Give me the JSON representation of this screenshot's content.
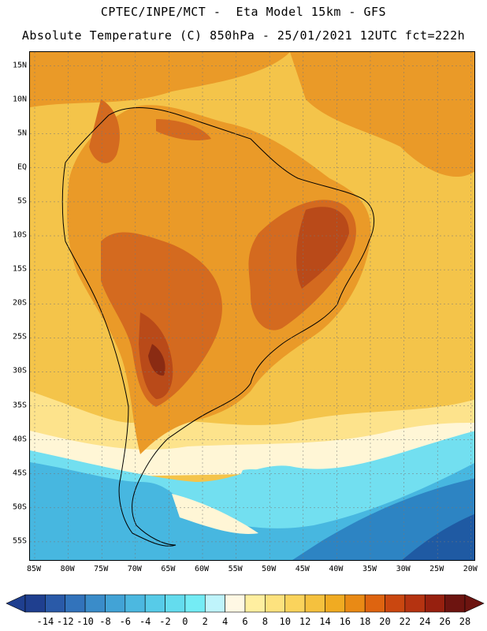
{
  "header": {
    "line1": "CPTEC/INPE/MCT -  Eta Model 15km - GFS",
    "line2": "Absolute Temperature (C) 850hPa - 25/01/2021 12UTC fct=222h"
  },
  "axes": {
    "lat_labels": [
      "15N",
      "10N",
      "5N",
      "EQ",
      "5S",
      "10S",
      "15S",
      "20S",
      "25S",
      "30S",
      "35S",
      "40S",
      "45S",
      "50S",
      "55S"
    ],
    "lon_labels": [
      "85W",
      "80W",
      "75W",
      "70W",
      "65W",
      "60W",
      "55W",
      "50W",
      "45W",
      "40W",
      "35W",
      "30W",
      "25W",
      "20W"
    ]
  },
  "colorbar": {
    "labels": [
      "-14",
      "-12",
      "-10",
      "-8",
      "-6",
      "-4",
      "-2",
      "0",
      "2",
      "4",
      "6",
      "8",
      "10",
      "12",
      "14",
      "16",
      "18",
      "20",
      "22",
      "24",
      "26",
      "28"
    ],
    "colors": [
      "#1f3f8f",
      "#2a5aa8",
      "#3273bb",
      "#3a8cc9",
      "#42a3d6",
      "#4cb8e0",
      "#57cbe8",
      "#64dcee",
      "#74ecf5",
      "#bff4fb",
      "#fff8e4",
      "#ffefa0",
      "#fde27e",
      "#fad35c",
      "#f5c13e",
      "#f0ab22",
      "#e98a15",
      "#de6410",
      "#ca4710",
      "#b53311",
      "#97200f",
      "#6d1410"
    ]
  },
  "map_colors": {
    "ocean_base": "#f4c44a",
    "warm": "#ea9a28",
    "hot": "#d46a1f",
    "hotter": "#b94a19",
    "hottest": "#8a2b13",
    "pale": "#fde38c",
    "cream": "#fff6d6",
    "cyan": "#72dff0",
    "blue1": "#47b7e0",
    "blue2": "#2d84c3",
    "blue3": "#1f5aa3"
  }
}
